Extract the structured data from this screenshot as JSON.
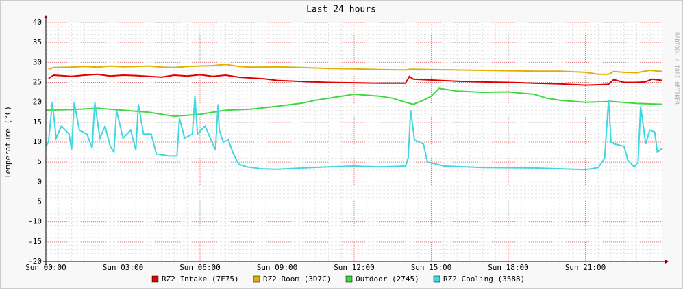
{
  "chart_data": {
    "type": "line",
    "title": "Last 24 hours",
    "y_label": "Temperature (°C)",
    "watermark": "RRDTOOL / TOBI OETIKER",
    "xlim": [
      0,
      24
    ],
    "ylim": [
      -20,
      40
    ],
    "xticks": [
      {
        "value": 0,
        "label": "Sun 00:00"
      },
      {
        "value": 3,
        "label": "Sun 03:00"
      },
      {
        "value": 6,
        "label": "Sun 06:00"
      },
      {
        "value": 9,
        "label": "Sun 09:00"
      },
      {
        "value": 12,
        "label": "Sun 12:00"
      },
      {
        "value": 15,
        "label": "Sun 15:00"
      },
      {
        "value": 18,
        "label": "Sun 18:00"
      },
      {
        "value": 21,
        "label": "Sun 21:00"
      }
    ],
    "yticks": [
      -20,
      -15,
      -10,
      -5,
      0,
      5,
      10,
      15,
      20,
      25,
      30,
      35,
      40
    ],
    "grid": true,
    "series": [
      {
        "name": "RZ2 Intake (7F75)",
        "color": "#e00000",
        "x": [
          0.1,
          0.3,
          1,
          1.5,
          2,
          2.5,
          3,
          3.5,
          4,
          4.5,
          5,
          5.5,
          6,
          6.5,
          7,
          7.5,
          8,
          8.5,
          9,
          10,
          11,
          12,
          13,
          14,
          14.15,
          14.3,
          15,
          16,
          17,
          18,
          19,
          20,
          21,
          21.5,
          21.9,
          22.1,
          22.5,
          23,
          23.3,
          23.6,
          24
        ],
        "values": [
          26,
          26.8,
          26.5,
          26.8,
          27,
          26.6,
          26.8,
          26.7,
          26.5,
          26.3,
          26.8,
          26.6,
          26.9,
          26.5,
          26.8,
          26.3,
          26.1,
          25.9,
          25.5,
          25.2,
          25,
          24.9,
          24.8,
          24.8,
          26.5,
          25.8,
          25.6,
          25.3,
          25.1,
          25,
          24.8,
          24.6,
          24.3,
          24.4,
          24.5,
          25.7,
          25,
          25,
          25.1,
          25.8,
          25.5
        ]
      },
      {
        "name": "RZ2 Room (3D7C)",
        "color": "#e0b000",
        "x": [
          0.1,
          0.3,
          1,
          1.5,
          2,
          2.5,
          3,
          3.5,
          4,
          4.5,
          5,
          5.5,
          6,
          6.5,
          7,
          7.5,
          8,
          9,
          10,
          11,
          12,
          13,
          14,
          14.2,
          15,
          16,
          17,
          18,
          19,
          20,
          21,
          21.5,
          21.9,
          22.1,
          22.5,
          23,
          23.5,
          24
        ],
        "values": [
          28.3,
          28.7,
          28.8,
          29,
          28.8,
          29.1,
          28.9,
          29,
          29.1,
          28.8,
          28.7,
          29,
          29.1,
          29.2,
          29.5,
          29,
          28.8,
          28.9,
          28.7,
          28.5,
          28.4,
          28.2,
          28.1,
          28.3,
          28.2,
          28.1,
          28,
          27.9,
          27.8,
          27.8,
          27.5,
          27,
          27,
          27.7,
          27.5,
          27.4,
          28,
          27.7
        ]
      },
      {
        "name": "Outdoor (2745)",
        "color": "#40d840",
        "x": [
          0,
          1,
          2,
          3,
          4,
          5,
          6,
          7,
          8,
          9,
          10,
          10.5,
          11,
          11.5,
          12,
          13,
          13.5,
          14,
          14.3,
          14.7,
          15,
          15.3,
          16,
          17,
          18,
          19,
          19.5,
          20,
          21,
          22,
          23,
          24
        ],
        "values": [
          18,
          18.2,
          18.5,
          18,
          17.5,
          16.5,
          17,
          18,
          18.3,
          19,
          19.8,
          20.5,
          21,
          21.5,
          22,
          21.5,
          21,
          20,
          19.5,
          20.5,
          21.5,
          23.5,
          22.8,
          22.5,
          22.6,
          22,
          21,
          20.5,
          20,
          20.2,
          19.7,
          19.5
        ]
      },
      {
        "name": "RZ2 Cooling (3588)",
        "color": "#40d8e0",
        "x": [
          0,
          0.1,
          0.25,
          0.4,
          0.6,
          0.9,
          1.0,
          1.1,
          1.3,
          1.6,
          1.8,
          1.9,
          2.1,
          2.3,
          2.5,
          2.65,
          2.75,
          3.0,
          3.3,
          3.5,
          3.6,
          3.8,
          4.1,
          4.3,
          4.8,
          5.1,
          5.2,
          5.4,
          5.7,
          5.8,
          5.9,
          6.2,
          6.4,
          6.6,
          6.7,
          6.75,
          6.9,
          7.1,
          7.3,
          7.5,
          7.8,
          8.4,
          9,
          10,
          11,
          12,
          13,
          14,
          14.1,
          14.2,
          14.35,
          14.7,
          14.85,
          15.5,
          17,
          19,
          21,
          21.5,
          21.75,
          21.9,
          22.0,
          22.15,
          22.5,
          22.65,
          22.9,
          23.05,
          23.15,
          23.35,
          23.5,
          23.7,
          23.8,
          24
        ],
        "values": [
          9,
          10,
          20,
          11,
          14,
          12,
          8,
          20,
          13,
          12,
          8.5,
          20,
          11,
          14,
          9,
          7.5,
          18,
          11,
          13,
          8,
          19.5,
          12,
          12,
          7,
          6.5,
          6.5,
          16,
          11,
          12,
          21.5,
          12,
          14,
          11,
          8,
          19.5,
          13,
          10,
          10.5,
          7,
          4.5,
          3.8,
          3.3,
          3.2,
          3.5,
          3.8,
          4,
          3.8,
          4,
          6,
          18,
          10.5,
          9.5,
          5,
          4,
          3.6,
          3.5,
          3.1,
          3.6,
          6,
          20.5,
          10,
          9.5,
          9,
          5.5,
          3.8,
          5,
          19,
          9.5,
          13,
          12.5,
          7.5,
          8.5
        ]
      }
    ]
  }
}
